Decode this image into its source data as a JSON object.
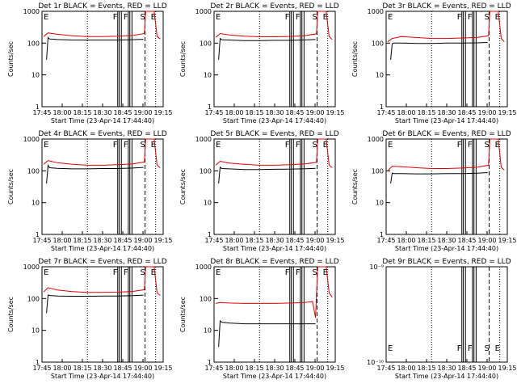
{
  "figure": {
    "background": "#ffffff",
    "event_color": "#000000",
    "lld_color": "#e00000"
  },
  "time_ticks": [
    "17:45",
    "18:00",
    "18:15",
    "18:30",
    "18:45",
    "19:00",
    "19:15"
  ],
  "time_range_min": [
    0,
    40
  ],
  "marker_labels": [
    "E",
    "F",
    "F",
    "S",
    "E"
  ],
  "marker_times_min": [
    15,
    25,
    28.5,
    34,
    37.5
  ],
  "lines": {
    "dotted": [
      15,
      37.5
    ],
    "dashed": [
      34
    ],
    "solid": [
      25,
      25.5,
      26.2,
      28.5,
      29.0,
      29.7
    ]
  },
  "chart_data": [
    {
      "type": "line",
      "title": "Det 1r BLACK = Events, RED = LLD",
      "ylabel": "Counts/sec",
      "xlabel": "Start Time (23-Apr-14 17:44:40)",
      "x_ticks": [
        "17:45",
        "18:00",
        "18:15",
        "18:30",
        "18:45",
        "19:00",
        "19:15"
      ],
      "yscale": "log",
      "ylim": [
        1,
        1000
      ],
      "y_ticks": [
        "1",
        "10",
        "100",
        "1000"
      ],
      "series": [
        {
          "name": "Events",
          "color": "#000000",
          "x": [
            1.5,
            2.0,
            2.5,
            5,
            10,
            15,
            20,
            25,
            30,
            33.5
          ],
          "y": [
            30,
            150,
            135,
            130,
            125,
            125,
            125,
            125,
            128,
            132
          ]
        },
        {
          "name": "LLD",
          "color": "#e00000",
          "x": [
            0.5,
            2,
            5,
            10,
            15,
            20,
            25,
            30,
            33.8,
            34.2,
            37,
            38,
            39
          ],
          "y": [
            160,
            210,
            190,
            170,
            160,
            160,
            165,
            175,
            200,
            1000,
            1000,
            160,
            135
          ]
        }
      ]
    },
    {
      "type": "line",
      "title": "Det 2r BLACK = Events, RED = LLD",
      "ylabel": "Counts/sec",
      "xlabel": "Start Time (23-Apr-14 17:44:40)",
      "x_ticks": [
        "17:45",
        "18:00",
        "18:15",
        "18:30",
        "18:45",
        "19:00",
        "19:15"
      ],
      "yscale": "log",
      "ylim": [
        1,
        1000
      ],
      "y_ticks": [
        "1",
        "10",
        "100",
        "1000"
      ],
      "series": [
        {
          "name": "Events",
          "color": "#000000",
          "x": [
            1.5,
            2.0,
            2.5,
            5,
            10,
            15,
            20,
            25,
            30,
            33.5
          ],
          "y": [
            30,
            140,
            128,
            125,
            120,
            120,
            122,
            122,
            126,
            130
          ]
        },
        {
          "name": "LLD",
          "color": "#e00000",
          "x": [
            0.5,
            2,
            5,
            10,
            15,
            20,
            25,
            30,
            33.8,
            34.2,
            37,
            38,
            39
          ],
          "y": [
            150,
            200,
            180,
            165,
            158,
            158,
            162,
            172,
            195,
            1000,
            1000,
            160,
            130
          ]
        }
      ]
    },
    {
      "type": "line",
      "title": "Det 3r BLACK = Events, RED = LLD",
      "ylabel": "Counts/sec",
      "xlabel": "Start Time (23-Apr-14 17:44:40)",
      "x_ticks": [
        "17:45",
        "18:00",
        "18:15",
        "18:30",
        "18:45",
        "19:00",
        "19:15"
      ],
      "yscale": "log",
      "ylim": [
        1,
        1000
      ],
      "y_ticks": [
        "1",
        "10",
        "100",
        "1000"
      ],
      "series": [
        {
          "name": "Events",
          "color": "#000000",
          "x": [
            1.5,
            2.0,
            2.5,
            5,
            10,
            15,
            20,
            25,
            30,
            33.5
          ],
          "y": [
            30,
            95,
            100,
            100,
            98,
            98,
            100,
            100,
            102,
            105
          ]
        },
        {
          "name": "LLD",
          "color": "#e00000",
          "x": [
            0.5,
            2,
            5,
            10,
            15,
            20,
            25,
            30,
            33.8,
            34.2,
            37,
            38,
            39
          ],
          "y": [
            110,
            140,
            160,
            150,
            140,
            140,
            145,
            150,
            170,
            1000,
            1000,
            140,
            110
          ]
        }
      ]
    },
    {
      "type": "line",
      "title": "Det 4r BLACK = Events, RED = LLD",
      "ylabel": "Counts/sec",
      "xlabel": "Start Time (23-Apr-14 17:44:40)",
      "x_ticks": [
        "17:45",
        "18:00",
        "18:15",
        "18:30",
        "18:45",
        "19:00",
        "19:15"
      ],
      "yscale": "log",
      "ylim": [
        1,
        1000
      ],
      "y_ticks": [
        "1",
        "10",
        "100",
        "1000"
      ],
      "series": [
        {
          "name": "Events",
          "color": "#000000",
          "x": [
            1.5,
            2.0,
            2.5,
            5,
            10,
            15,
            20,
            25,
            30,
            33.5
          ],
          "y": [
            40,
            150,
            125,
            120,
            115,
            115,
            118,
            118,
            122,
            128
          ]
        },
        {
          "name": "LLD",
          "color": "#e00000",
          "x": [
            0.5,
            2,
            5,
            10,
            15,
            20,
            25,
            30,
            33.8,
            34.2,
            37,
            38,
            39
          ],
          "y": [
            160,
            210,
            180,
            160,
            150,
            150,
            155,
            165,
            190,
            1000,
            1000,
            150,
            125
          ]
        }
      ]
    },
    {
      "type": "line",
      "title": "Det 5r BLACK = Events, RED = LLD",
      "ylabel": "Counts/sec",
      "xlabel": "Start Time (23-Apr-14 17:44:40)",
      "x_ticks": [
        "17:45",
        "18:00",
        "18:15",
        "18:30",
        "18:45",
        "19:00",
        "19:15"
      ],
      "yscale": "log",
      "ylim": [
        1,
        1000
      ],
      "y_ticks": [
        "1",
        "10",
        "100",
        "1000"
      ],
      "series": [
        {
          "name": "Events",
          "color": "#000000",
          "x": [
            1.5,
            2.0,
            2.5,
            5,
            10,
            15,
            20,
            25,
            30,
            33.5
          ],
          "y": [
            40,
            130,
            118,
            115,
            110,
            110,
            112,
            113,
            116,
            120
          ]
        },
        {
          "name": "LLD",
          "color": "#e00000",
          "x": [
            0.5,
            2,
            5,
            10,
            15,
            20,
            25,
            30,
            33.8,
            34.2,
            37,
            38,
            39
          ],
          "y": [
            150,
            200,
            175,
            160,
            150,
            150,
            155,
            165,
            185,
            1000,
            1000,
            150,
            125
          ]
        }
      ]
    },
    {
      "type": "line",
      "title": "Det 6r BLACK = Events, RED = LLD",
      "ylabel": "Counts/sec",
      "xlabel": "Start Time (23-Apr-14 17:44:40)",
      "x_ticks": [
        "17:45",
        "18:00",
        "18:15",
        "18:30",
        "18:45",
        "19:00",
        "19:15"
      ],
      "yscale": "log",
      "ylim": [
        1,
        1000
      ],
      "y_ticks": [
        "1",
        "10",
        "100",
        "1000"
      ],
      "series": [
        {
          "name": "Events",
          "color": "#000000",
          "x": [
            1.5,
            2.0,
            2.5,
            5,
            10,
            15,
            20,
            25,
            30,
            33.5
          ],
          "y": [
            40,
            85,
            82,
            82,
            80,
            80,
            82,
            82,
            84,
            88
          ]
        },
        {
          "name": "LLD",
          "color": "#e00000",
          "x": [
            0.5,
            2,
            5,
            10,
            15,
            20,
            25,
            30,
            33.8,
            34.2,
            37,
            38,
            39
          ],
          "y": [
            100,
            140,
            135,
            125,
            118,
            118,
            122,
            130,
            150,
            1000,
            1000,
            130,
            105
          ]
        }
      ]
    },
    {
      "type": "line",
      "title": "Det 7r BLACK = Events, RED = LLD",
      "ylabel": "Counts/sec",
      "xlabel": "Start Time (23-Apr-14 17:44:40)",
      "x_ticks": [
        "17:45",
        "18:00",
        "18:15",
        "18:30",
        "18:45",
        "19:00",
        "19:15"
      ],
      "yscale": "log",
      "ylim": [
        1,
        1000
      ],
      "y_ticks": [
        "1",
        "10",
        "100",
        "1000"
      ],
      "series": [
        {
          "name": "Events",
          "color": "#000000",
          "x": [
            1.5,
            2.0,
            2.5,
            5,
            10,
            15,
            20,
            25,
            30,
            33.5
          ],
          "y": [
            35,
            130,
            125,
            120,
            118,
            118,
            120,
            120,
            123,
            128
          ]
        },
        {
          "name": "LLD",
          "color": "#e00000",
          "x": [
            0.5,
            2,
            5,
            10,
            15,
            20,
            25,
            30,
            33.8,
            34.2,
            37,
            38,
            39
          ],
          "y": [
            160,
            220,
            185,
            165,
            155,
            155,
            158,
            168,
            190,
            1000,
            1000,
            150,
            125
          ]
        }
      ]
    },
    {
      "type": "line",
      "title": "Det 8r BLACK = Events, RED = LLD",
      "ylabel": "Counts/sec",
      "xlabel": "Start Time (23-Apr-14 17:44:40)",
      "x_ticks": [
        "17:45",
        "18:00",
        "18:15",
        "18:30",
        "18:45",
        "19:00",
        "19:15"
      ],
      "yscale": "log",
      "ylim": [
        1,
        1000
      ],
      "y_ticks": [
        "1",
        "10",
        "100",
        "1000"
      ],
      "series": [
        {
          "name": "Events",
          "color": "#000000",
          "x": [
            1.5,
            2.0,
            2.5,
            5,
            10,
            15,
            20,
            25,
            30,
            33.5
          ],
          "y": [
            3,
            20,
            18,
            17,
            16,
            16,
            16,
            16,
            16,
            16
          ]
        },
        {
          "name": "LLD",
          "color": "#e00000",
          "x": [
            0.5,
            2,
            5,
            10,
            15,
            20,
            25,
            30,
            32.5,
            33.5,
            34.2,
            37,
            38,
            39
          ],
          "y": [
            70,
            75,
            72,
            70,
            70,
            70,
            72,
            75,
            80,
            25,
            1000,
            1000,
            150,
            110
          ]
        }
      ]
    },
    {
      "type": "line",
      "title": "Det 9r BLACK = Events, RED = LLD",
      "ylabel": "",
      "xlabel": "Start Time (23-Apr-14 17:44:40)",
      "x_ticks": [
        "17:45",
        "18:00",
        "18:15",
        "18:30",
        "18:45",
        "19:00",
        "19:15"
      ],
      "yscale": "log",
      "ylim": [
        1e-10,
        1e-09
      ],
      "y_ticks": [
        "10⁻¹⁰",
        "10⁻⁹"
      ],
      "series": []
    }
  ]
}
